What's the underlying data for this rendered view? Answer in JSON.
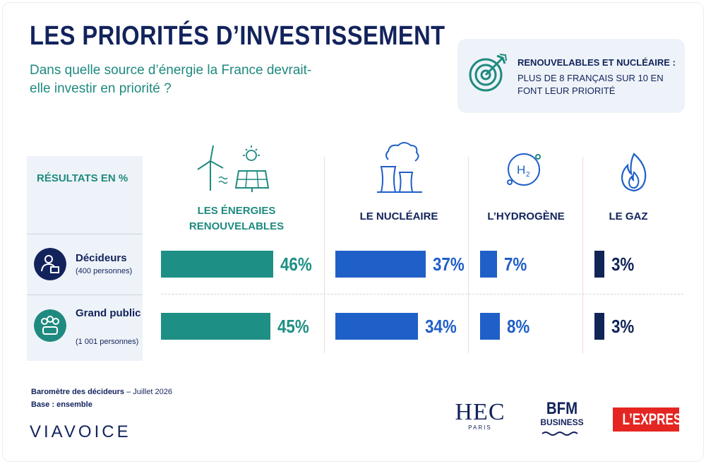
{
  "header": {
    "title": "LES PRIORITÉS D’INVESTISSEMENT",
    "subtitle": "Dans quelle source d’énergie la France devrait-elle investir en priorité ?"
  },
  "callout": {
    "title": "RENOUVELABLES ET NUCLÉAIRE :",
    "text": "PLUS DE 8 FRANÇAIS SUR 10 EN FONT LEUR PRIORITÉ",
    "icon": "target-arrow-icon"
  },
  "panel": {
    "heading": "RÉSULTATS EN %",
    "groups": [
      {
        "name": "Décideurs",
        "sub": "(400 personnes)",
        "icon": "decision-maker-icon"
      },
      {
        "name": "Grand public",
        "sub": "(1 001 personnes)",
        "icon": "public-group-icon"
      }
    ]
  },
  "chart_data": {
    "type": "bar",
    "title": "LES PRIORITÉS D’INVESTISSEMENT",
    "unit": "%",
    "categories": [
      "LES ÉNERGIES RENOUVELABLES",
      "LE NUCLÉAIRE",
      "L’HYDROGÈNE",
      "LE GAZ"
    ],
    "series": [
      {
        "name": "Décideurs",
        "values": [
          46,
          37,
          7,
          3
        ]
      },
      {
        "name": "Grand public",
        "values": [
          45,
          34,
          8,
          3
        ]
      }
    ],
    "category_colors": [
      "#1e8f84",
      "#1f5fc8",
      "#1f5fc8",
      "#102456"
    ],
    "labels": [
      [
        "46%",
        "37%",
        "7%",
        "3%"
      ],
      [
        "45%",
        "34%",
        "8%",
        "3%"
      ]
    ],
    "category_icons": [
      "wind-solar-icon",
      "nuclear-plant-icon",
      "hydrogen-icon",
      "gas-flame-icon"
    ]
  },
  "footer": {
    "source_bold": "Baromètre des décideurs",
    "source_date": "– Juillet 2026",
    "base": "Base : ensemble",
    "brand": "VIAVOICE",
    "logos": {
      "hec": "HEC",
      "hec_sub": "PARIS",
      "bfm": "BFM",
      "bfm_sub": "BUSINESS",
      "lexpress": "L’EXPRESS"
    }
  }
}
